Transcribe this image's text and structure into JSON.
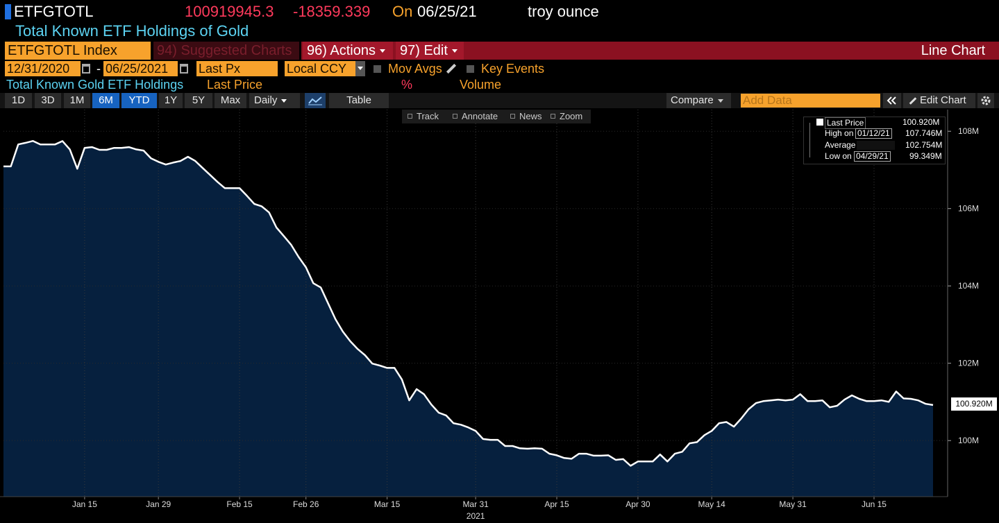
{
  "header": {
    "ticker": "ETFGTOTL",
    "last": "100919945.3",
    "change": "-18359.339",
    "on": "On",
    "date": "06/25/21",
    "unit": "troy ounce",
    "description": "Total Known ETF Holdings of Gold"
  },
  "menu": {
    "security": "ETFGTOTL Index",
    "suggested": "94) Suggested Charts",
    "actions": "96) Actions",
    "edit": "97) Edit",
    "chart_type": "Line Chart"
  },
  "settings": {
    "start": "12/31/2020",
    "dash": "-",
    "end": "06/25/2021",
    "field": "Last Px",
    "currency": "Local CCY",
    "mov_avgs": "Mov Avgs",
    "key_events": "Key Events"
  },
  "panel": {
    "name": "Total Known Gold ETF Holdings",
    "price": "Last Price",
    "percent": "%",
    "volume": "Volume"
  },
  "toolbar": {
    "ranges": [
      "1D",
      "3D",
      "1M",
      "6M",
      "YTD",
      "1Y",
      "5Y",
      "Max"
    ],
    "period": "Daily",
    "table": "Table",
    "compare": "Compare",
    "add_data": "Add Data",
    "edit_chart": "Edit Chart"
  },
  "chart_tools": [
    "Track",
    "Annotate",
    "News",
    "Zoom"
  ],
  "chart_data": {
    "type": "line",
    "categories": [
      null,
      null,
      null,
      null,
      null,
      null,
      null,
      null,
      null,
      null,
      null,
      "Jan 15",
      null,
      null,
      null,
      null,
      null,
      null,
      null,
      null,
      null,
      "Jan 29",
      null,
      null,
      null,
      null,
      null,
      null,
      null,
      null,
      null,
      null,
      "Feb 15",
      null,
      null,
      null,
      null,
      null,
      null,
      null,
      null,
      "Feb 26",
      null,
      null,
      null,
      null,
      null,
      null,
      null,
      null,
      null,
      null,
      "Mar 15",
      null,
      null,
      null,
      null,
      null,
      null,
      null,
      null,
      null,
      null,
      null,
      "Mar 31",
      null,
      null,
      null,
      null,
      null,
      null,
      null,
      null,
      null,
      null,
      "Apr 15",
      null,
      null,
      null,
      null,
      null,
      null,
      null,
      null,
      null,
      null,
      "Apr 30",
      null,
      null,
      null,
      null,
      null,
      null,
      null,
      null,
      null,
      "May 14",
      null,
      null,
      null,
      null,
      null,
      null,
      null,
      null,
      null,
      null,
      "May 31",
      null,
      null,
      null,
      null,
      null,
      null,
      null,
      null,
      null,
      null,
      "Jun 15",
      null,
      null,
      null,
      null,
      null,
      null,
      null,
      null
    ],
    "x_year": "2021",
    "series": [
      {
        "name": "Last Price",
        "color": "#ffffff",
        "fill": "#06203e",
        "values": [
          107.09,
          107.09,
          107.66,
          107.7,
          107.75,
          107.66,
          107.66,
          107.66,
          107.746,
          107.53,
          107.03,
          107.57,
          107.59,
          107.52,
          107.52,
          107.57,
          107.57,
          107.59,
          107.53,
          107.5,
          107.3,
          107.21,
          107.14,
          107.19,
          107.23,
          107.34,
          107.23,
          107.05,
          106.87,
          106.69,
          106.53,
          106.53,
          106.53,
          106.33,
          106.12,
          106.06,
          105.9,
          105.51,
          105.29,
          105.06,
          104.75,
          104.48,
          104.07,
          103.96,
          103.55,
          103.14,
          102.82,
          102.57,
          102.37,
          102.21,
          101.99,
          101.94,
          101.88,
          101.88,
          101.58,
          101.04,
          101.33,
          101.2,
          100.93,
          100.72,
          100.65,
          100.45,
          100.41,
          100.34,
          100.25,
          100.04,
          100.02,
          100.02,
          99.86,
          99.86,
          99.8,
          99.79,
          99.8,
          99.79,
          99.66,
          99.62,
          99.55,
          99.53,
          99.66,
          99.66,
          99.61,
          99.61,
          99.62,
          99.5,
          99.52,
          99.349,
          99.46,
          99.46,
          99.46,
          99.64,
          99.46,
          99.66,
          99.71,
          99.93,
          99.96,
          100.14,
          100.25,
          100.45,
          100.48,
          100.36,
          100.57,
          100.81,
          100.97,
          101.02,
          101.04,
          101.06,
          101.04,
          101.06,
          101.2,
          101.02,
          101.02,
          101.04,
          100.86,
          100.9,
          101.06,
          101.17,
          101.08,
          101.02,
          101.02,
          101.04,
          101.0,
          101.27,
          101.09,
          101.08,
          101.04,
          100.95,
          100.92
        ]
      }
    ],
    "ylim": [
      98.55,
      108.56
    ],
    "yticks": [
      {
        "value": 108,
        "label": "108M"
      },
      {
        "value": 106,
        "label": "106M"
      },
      {
        "value": 104,
        "label": "104M"
      },
      {
        "value": 102,
        "label": "102M"
      },
      {
        "value": 100,
        "label": "100M"
      }
    ],
    "grid": true,
    "last_value_label": "100.920M",
    "legend_stats": [
      {
        "label": "High on",
        "date": "01/12/21",
        "value": "107.746M"
      },
      {
        "label": "Average",
        "value": "102.754M"
      },
      {
        "label": "Low on",
        "date": "04/29/21",
        "value": "99.349M"
      }
    ]
  }
}
